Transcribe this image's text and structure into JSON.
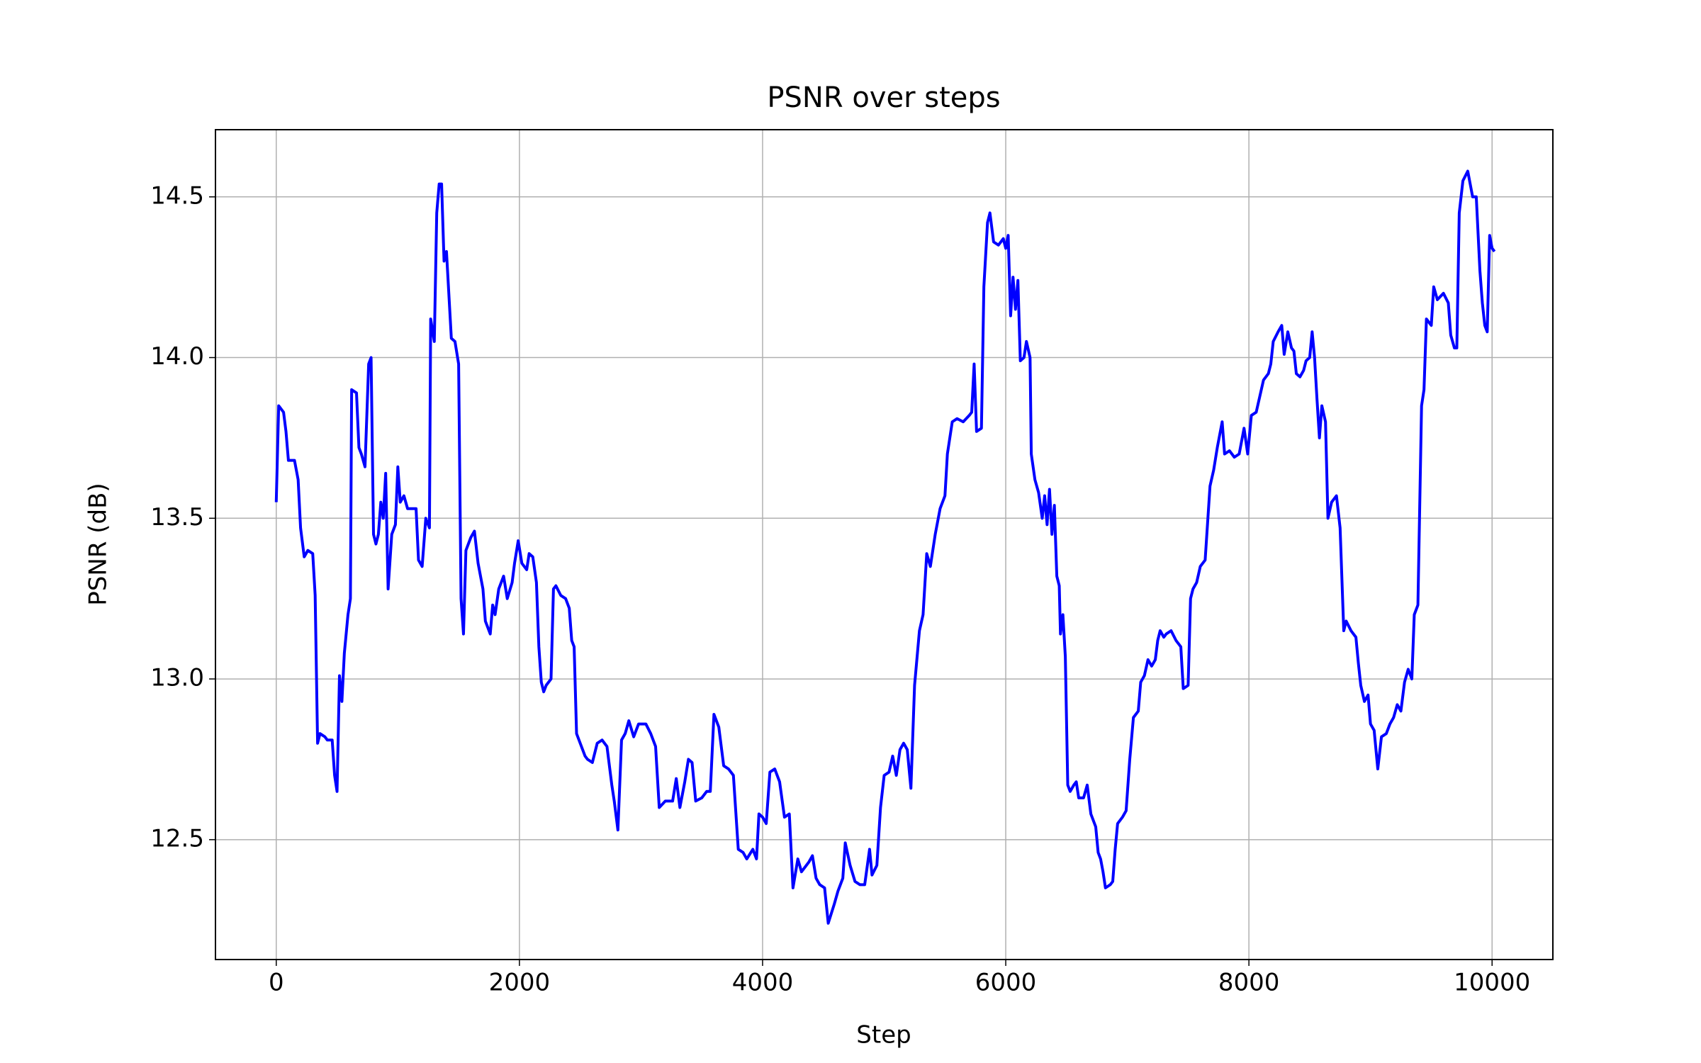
{
  "chart_data": {
    "type": "line",
    "title": "PSNR over steps",
    "xlabel": "Step",
    "ylabel": "PSNR (dB)",
    "color": "#0000ff",
    "grid": true,
    "xlim": [
      -500,
      10500
    ],
    "ylim": [
      12.127,
      14.709
    ],
    "xticks": [
      0,
      2000,
      4000,
      6000,
      8000,
      10000
    ],
    "yticks": [
      12.5,
      {
        "value": 13,
        "label": "13.0"
      },
      13.5,
      {
        "value": 14,
        "label": "14.0"
      },
      14.5
    ],
    "x": [
      0,
      20,
      60,
      80,
      100,
      150,
      180,
      200,
      230,
      260,
      300,
      320,
      340,
      360,
      400,
      420,
      460,
      480,
      500,
      520,
      540,
      560,
      590,
      610,
      620,
      660,
      680,
      700,
      730,
      760,
      780,
      800,
      820,
      840,
      860,
      880,
      900,
      920,
      950,
      980,
      1000,
      1020,
      1050,
      1080,
      1120,
      1150,
      1170,
      1200,
      1230,
      1260,
      1270,
      1300,
      1320,
      1340,
      1360,
      1380,
      1400,
      1440,
      1470,
      1500,
      1520,
      1540,
      1560,
      1600,
      1630,
      1660,
      1700,
      1720,
      1760,
      1780,
      1800,
      1830,
      1870,
      1900,
      1940,
      1960,
      1990,
      2020,
      2060,
      2080,
      2110,
      2140,
      2160,
      2180,
      2200,
      2220,
      2260,
      2280,
      2300,
      2340,
      2380,
      2410,
      2430,
      2450,
      2470,
      2500,
      2540,
      2560,
      2600,
      2640,
      2680,
      2720,
      2760,
      2780,
      2810,
      2840,
      2870,
      2900,
      2940,
      2980,
      3040,
      3080,
      3120,
      3150,
      3200,
      3260,
      3290,
      3320,
      3360,
      3390,
      3420,
      3450,
      3500,
      3540,
      3570,
      3600,
      3640,
      3680,
      3720,
      3760,
      3800,
      3840,
      3870,
      3920,
      3950,
      3970,
      4000,
      4030,
      4060,
      4100,
      4140,
      4180,
      4220,
      4250,
      4290,
      4320,
      4380,
      4410,
      4440,
      4470,
      4510,
      4540,
      4590,
      4620,
      4660,
      4680,
      4720,
      4760,
      4800,
      4840,
      4880,
      4900,
      4940,
      4970,
      5000,
      5040,
      5070,
      5100,
      5130,
      5160,
      5190,
      5210,
      5220,
      5250,
      5290,
      5320,
      5350,
      5380,
      5420,
      5460,
      5500,
      5520,
      5560,
      5600,
      5650,
      5700,
      5720,
      5740,
      5760,
      5800,
      5820,
      5850,
      5870,
      5900,
      5940,
      5980,
      6000,
      6020,
      6040,
      6060,
      6080,
      6100,
      6120,
      6150,
      6170,
      6200,
      6210,
      6240,
      6270,
      6300,
      6320,
      6340,
      6360,
      6380,
      6400,
      6420,
      6440,
      6450,
      6470,
      6490,
      6510,
      6530,
      6560,
      6580,
      6600,
      6640,
      6670,
      6700,
      6740,
      6760,
      6780,
      6800,
      6820,
      6860,
      6880,
      6900,
      6920,
      6960,
      6990,
      7020,
      7050,
      7090,
      7110,
      7140,
      7170,
      7200,
      7230,
      7250,
      7270,
      7300,
      7320,
      7360,
      7400,
      7440,
      7460,
      7500,
      7520,
      7540,
      7570,
      7600,
      7640,
      7680,
      7710,
      7740,
      7780,
      7800,
      7840,
      7880,
      7920,
      7960,
      7990,
      8020,
      8060,
      8090,
      8120,
      8160,
      8180,
      8200,
      8240,
      8270,
      8290,
      8320,
      8350,
      8370,
      8390,
      8420,
      8450,
      8470,
      8500,
      8520,
      8540,
      8560,
      8580,
      8600,
      8630,
      8650,
      8680,
      8720,
      8750,
      8780,
      8800,
      8840,
      8880,
      8900,
      8920,
      8950,
      8980,
      9000,
      9030,
      9060,
      9090,
      9130,
      9160,
      9190,
      9220,
      9250,
      9280,
      9310,
      9340,
      9360,
      9390,
      9420,
      9440,
      9460,
      9500,
      9520,
      9550,
      9600,
      9640,
      9660,
      9690,
      9710,
      9730,
      9760,
      9800,
      9840,
      9870,
      9900,
      9920,
      9940,
      9960,
      9980,
      10000,
      10020
    ],
    "values": [
      13.55,
      13.85,
      13.83,
      13.77,
      13.68,
      13.68,
      13.62,
      13.47,
      13.38,
      13.4,
      13.39,
      13.26,
      12.8,
      12.83,
      12.82,
      12.81,
      12.81,
      12.7,
      12.65,
      13.01,
      12.93,
      13.08,
      13.2,
      13.25,
      13.9,
      13.89,
      13.72,
      13.7,
      13.66,
      13.98,
      14.0,
      13.45,
      13.42,
      13.45,
      13.55,
      13.5,
      13.64,
      13.28,
      13.45,
      13.48,
      13.66,
      13.55,
      13.57,
      13.53,
      13.53,
      13.53,
      13.37,
      13.35,
      13.5,
      13.47,
      14.12,
      14.05,
      14.45,
      14.54,
      14.54,
      14.3,
      14.33,
      14.06,
      14.05,
      13.98,
      13.25,
      13.14,
      13.4,
      13.44,
      13.46,
      13.36,
      13.28,
      13.18,
      13.14,
      13.23,
      13.2,
      13.28,
      13.32,
      13.25,
      13.3,
      13.36,
      13.43,
      13.36,
      13.34,
      13.39,
      13.38,
      13.3,
      13.1,
      12.99,
      12.96,
      12.98,
      13.0,
      13.28,
      13.29,
      13.26,
      13.25,
      13.22,
      13.12,
      13.1,
      12.83,
      12.8,
      12.76,
      12.75,
      12.74,
      12.8,
      12.81,
      12.79,
      12.67,
      12.62,
      12.53,
      12.81,
      12.83,
      12.87,
      12.82,
      12.86,
      12.86,
      12.83,
      12.79,
      12.6,
      12.62,
      12.62,
      12.69,
      12.6,
      12.68,
      12.75,
      12.74,
      12.62,
      12.63,
      12.65,
      12.65,
      12.89,
      12.85,
      12.73,
      12.72,
      12.7,
      12.47,
      12.46,
      12.44,
      12.47,
      12.44,
      12.58,
      12.57,
      12.55,
      12.71,
      12.72,
      12.68,
      12.57,
      12.58,
      12.35,
      12.44,
      12.4,
      12.43,
      12.45,
      12.38,
      12.36,
      12.35,
      12.24,
      12.3,
      12.34,
      12.38,
      12.49,
      12.42,
      12.37,
      12.36,
      12.36,
      12.47,
      12.39,
      12.42,
      12.6,
      12.7,
      12.71,
      12.76,
      12.7,
      12.78,
      12.8,
      12.78,
      12.7,
      12.66,
      12.98,
      13.15,
      13.2,
      13.39,
      13.35,
      13.45,
      13.53,
      13.57,
      13.7,
      13.8,
      13.81,
      13.8,
      13.82,
      13.83,
      13.98,
      13.77,
      13.78,
      14.22,
      14.42,
      14.45,
      14.36,
      14.35,
      14.37,
      14.34,
      14.38,
      14.13,
      14.25,
      14.15,
      14.24,
      13.99,
      14.0,
      14.05,
      14.0,
      13.7,
      13.62,
      13.58,
      13.5,
      13.57,
      13.48,
      13.59,
      13.45,
      13.54,
      13.32,
      13.29,
      13.14,
      13.2,
      13.07,
      12.67,
      12.65,
      12.67,
      12.68,
      12.63,
      12.63,
      12.67,
      12.58,
      12.54,
      12.46,
      12.44,
      12.4,
      12.35,
      12.36,
      12.37,
      12.47,
      12.55,
      12.57,
      12.59,
      12.75,
      12.88,
      12.9,
      12.99,
      13.01,
      13.06,
      13.04,
      13.06,
      13.12,
      13.15,
      13.13,
      13.14,
      13.15,
      13.12,
      13.1,
      12.97,
      12.98,
      13.25,
      13.28,
      13.3,
      13.35,
      13.37,
      13.6,
      13.65,
      13.72,
      13.8,
      13.7,
      13.71,
      13.69,
      13.7,
      13.78,
      13.7,
      13.82,
      13.83,
      13.88,
      13.93,
      13.95,
      13.98,
      14.05,
      14.08,
      14.1,
      14.01,
      14.08,
      14.03,
      14.02,
      13.95,
      13.94,
      13.96,
      13.99,
      14.0,
      14.08,
      14.0,
      13.87,
      13.75,
      13.85,
      13.8,
      13.5,
      13.55,
      13.57,
      13.47,
      13.15,
      13.18,
      13.15,
      13.13,
      13.05,
      12.98,
      12.93,
      12.95,
      12.86,
      12.84,
      12.72,
      12.82,
      12.83,
      12.86,
      12.88,
      12.92,
      12.9,
      12.99,
      13.03,
      13.0,
      13.2,
      13.23,
      13.85,
      13.9,
      14.12,
      14.1,
      14.22,
      14.18,
      14.2,
      14.17,
      14.07,
      14.03,
      14.03,
      14.45,
      14.55,
      14.58,
      14.5,
      14.5,
      14.27,
      14.17,
      14.1,
      14.08,
      14.38,
      14.34,
      14.33
    ]
  }
}
